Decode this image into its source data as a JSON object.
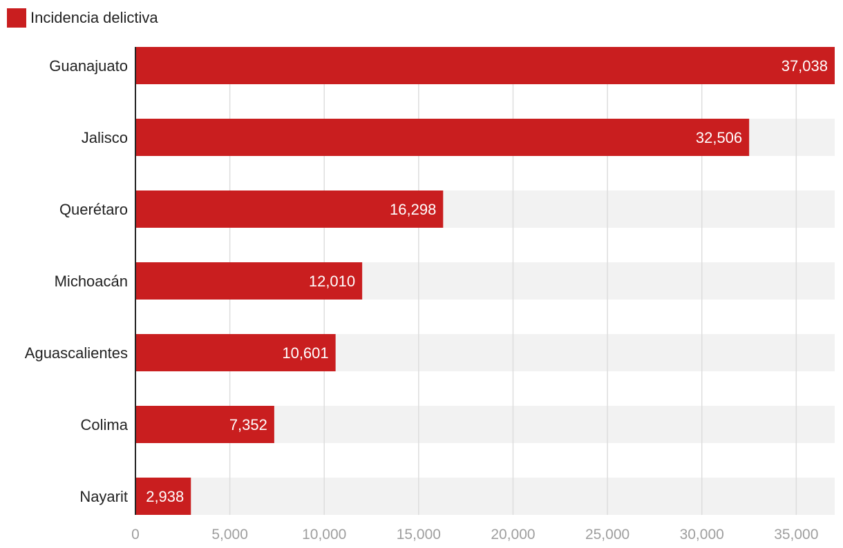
{
  "chart_data": {
    "type": "bar",
    "orientation": "horizontal",
    "legend": {
      "label": "Incidencia delictiva",
      "placement": "top-left"
    },
    "categories": [
      "Guanajuato",
      "Jalisco",
      "Querétaro",
      "Michoacán",
      "Aguascalientes",
      "Colima",
      "Nayarit"
    ],
    "values": [
      37038,
      32506,
      16298,
      12010,
      10601,
      7352,
      2938
    ],
    "value_labels": [
      "37,038",
      "32,506",
      "16,298",
      "12,010",
      "10,601",
      "7,352",
      "2,938"
    ],
    "xlim": [
      0,
      37038
    ],
    "x_ticks": [
      0,
      5000,
      10000,
      15000,
      20000,
      25000,
      30000,
      35000
    ],
    "x_tick_labels": [
      "0",
      "5,000",
      "10,000",
      "15,000",
      "20,000",
      "25,000",
      "30,000",
      "35,000"
    ],
    "grid": true,
    "colors": {
      "bar": "#c91e1f",
      "band": "#f2f2f2",
      "grid": "#dddddd",
      "axis": "#222222",
      "tick_text": "#9e9e9e"
    }
  }
}
